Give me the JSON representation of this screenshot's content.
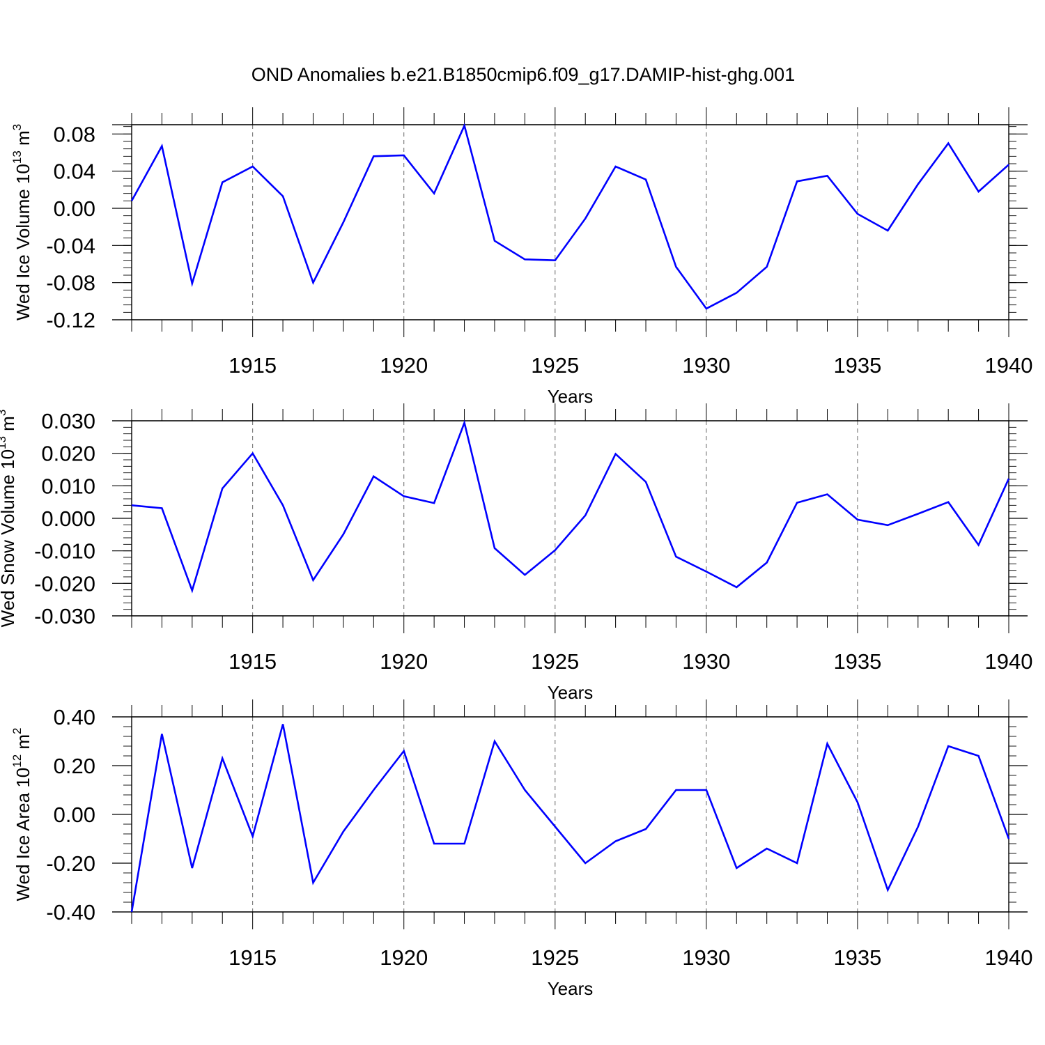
{
  "title": "OND Anomalies b.e21.B1850cmip6.f09_g17.DAMIP-hist-ghg.001",
  "line_color": "#0000ff",
  "chart_data": [
    {
      "type": "line",
      "ylabel": "Wed Ice Volume",
      "ylabel_unit_base": "10",
      "ylabel_unit_exp": "13",
      "ylabel_unit_tail": "m",
      "ylabel_unit_tail_exp": "3",
      "xlabel": "Years",
      "xlim": [
        1911,
        1940
      ],
      "ylim": [
        -0.12,
        0.09
      ],
      "xticks": [
        1915,
        1920,
        1925,
        1930,
        1935,
        1940
      ],
      "xtick_labels": [
        "1915",
        "1920",
        "1925",
        "1930",
        "1935",
        "1940"
      ],
      "yticks": [
        0.08,
        0.04,
        0.0,
        -0.04,
        -0.08,
        -0.12
      ],
      "ytick_labels": [
        "0.08",
        "0.04",
        "0.00",
        "-0.04",
        "-0.08",
        "-0.12"
      ],
      "grid": "vertical dashed at labeled years",
      "x": [
        1911,
        1912,
        1913,
        1914,
        1915,
        1916,
        1917,
        1918,
        1919,
        1920,
        1921,
        1922,
        1923,
        1924,
        1925,
        1926,
        1927,
        1928,
        1929,
        1930,
        1931,
        1932,
        1933,
        1934,
        1935,
        1936,
        1937,
        1938,
        1939,
        1940
      ],
      "values": [
        0.008,
        0.067,
        -0.081,
        0.028,
        0.045,
        0.013,
        -0.08,
        -0.015,
        0.056,
        0.057,
        0.016,
        0.089,
        -0.035,
        -0.055,
        -0.056,
        -0.011,
        0.045,
        0.031,
        -0.063,
        -0.108,
        -0.091,
        -0.063,
        0.029,
        0.035,
        -0.006,
        -0.024,
        0.026,
        0.07,
        0.018,
        0.047
      ]
    },
    {
      "type": "line",
      "ylabel": "Wed Snow Volume",
      "ylabel_unit_base": "10",
      "ylabel_unit_exp": "13",
      "ylabel_unit_tail": "m",
      "ylabel_unit_tail_exp": "3",
      "xlabel": "Years",
      "xlim": [
        1911,
        1940
      ],
      "ylim": [
        -0.03,
        0.03
      ],
      "xticks": [
        1915,
        1920,
        1925,
        1930,
        1935,
        1940
      ],
      "xtick_labels": [
        "1915",
        "1920",
        "1925",
        "1930",
        "1935",
        "1940"
      ],
      "yticks": [
        0.03,
        0.02,
        0.01,
        0.0,
        -0.01,
        -0.02,
        -0.03
      ],
      "ytick_labels": [
        "0.030",
        "0.020",
        "0.010",
        "0.000",
        "-0.010",
        "-0.020",
        "-0.030"
      ],
      "grid": "vertical dashed at labeled years",
      "x": [
        1911,
        1912,
        1913,
        1914,
        1915,
        1916,
        1917,
        1918,
        1919,
        1920,
        1921,
        1922,
        1923,
        1924,
        1925,
        1926,
        1927,
        1928,
        1929,
        1930,
        1931,
        1932,
        1933,
        1934,
        1935,
        1936,
        1937,
        1938,
        1939,
        1940
      ],
      "values": [
        0.004,
        0.0031,
        -0.0222,
        0.0092,
        0.02,
        0.004,
        -0.019,
        -0.0049,
        0.0129,
        0.0068,
        0.0047,
        0.0294,
        -0.0092,
        -0.0174,
        -0.0098,
        0.0009,
        0.0198,
        0.0112,
        -0.0118,
        -0.0164,
        -0.0212,
        -0.0136,
        0.0048,
        0.0074,
        -0.0004,
        -0.0021,
        0.0014,
        0.005,
        -0.0082,
        0.0122
      ]
    },
    {
      "type": "line",
      "ylabel": "Wed Ice Area",
      "ylabel_unit_base": "10",
      "ylabel_unit_exp": "12",
      "ylabel_unit_tail": "m",
      "ylabel_unit_tail_exp": "2",
      "xlabel": "Years",
      "xlim": [
        1911,
        1940
      ],
      "ylim": [
        -0.4,
        0.4
      ],
      "xticks": [
        1915,
        1920,
        1925,
        1930,
        1935,
        1940
      ],
      "xtick_labels": [
        "1915",
        "1920",
        "1925",
        "1930",
        "1935",
        "1940"
      ],
      "yticks": [
        0.4,
        0.2,
        0.0,
        -0.2,
        -0.4
      ],
      "ytick_labels": [
        "0.40",
        "0.20",
        "0.00",
        "-0.20",
        "-0.40"
      ],
      "grid": "vertical dashed at labeled years",
      "x": [
        1911,
        1912,
        1913,
        1914,
        1915,
        1916,
        1917,
        1918,
        1919,
        1920,
        1921,
        1922,
        1923,
        1924,
        1925,
        1926,
        1927,
        1928,
        1929,
        1930,
        1931,
        1932,
        1933,
        1934,
        1935,
        1936,
        1937,
        1938,
        1939,
        1940
      ],
      "values": [
        -0.4,
        0.33,
        -0.22,
        0.23,
        -0.09,
        0.37,
        -0.28,
        -0.07,
        0.1,
        0.26,
        -0.12,
        -0.12,
        0.3,
        0.1,
        -0.05,
        -0.2,
        -0.11,
        -0.06,
        0.1,
        0.1,
        -0.22,
        -0.14,
        -0.2,
        0.29,
        0.05,
        -0.31,
        -0.05,
        0.28,
        0.24,
        -0.1
      ]
    }
  ]
}
